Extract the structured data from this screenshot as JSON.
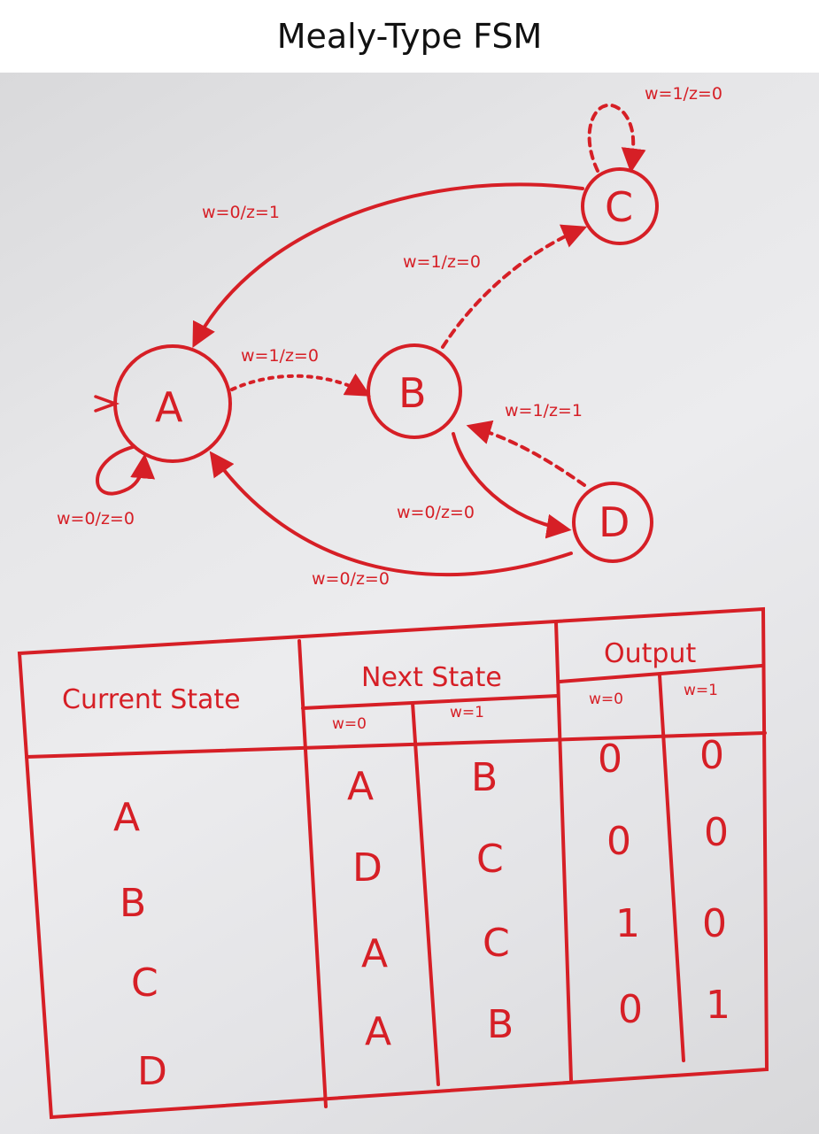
{
  "title": "Mealy-Type FSM",
  "colors": {
    "ink": "#d61f26",
    "board": "#e6e6e8"
  },
  "states": [
    "A",
    "B",
    "C",
    "D"
  ],
  "transitions": {
    "A_self": "w=0/z=0",
    "A_to_B": "w=1/z=0",
    "B_to_C": "w=1/z=0",
    "C_self": "w=1/z=0",
    "C_to_A": "w=0/z=1",
    "D_to_B": "w=1/z=1",
    "B_to_D": "w=0/z=0",
    "D_to_A": "w=0/z=0"
  },
  "table": {
    "headers": {
      "current_state": "Current State",
      "next_state": "Next State",
      "output": "Output",
      "w0": "w=0",
      "w1": "w=1"
    },
    "rows": [
      {
        "current": "A",
        "next_w0": "A",
        "next_w1": "B",
        "out_w0": "0",
        "out_w1": "0"
      },
      {
        "current": "B",
        "next_w0": "D",
        "next_w1": "C",
        "out_w0": "0",
        "out_w1": "0"
      },
      {
        "current": "C",
        "next_w0": "A",
        "next_w1": "C",
        "out_w0": "1",
        "out_w1": "0"
      },
      {
        "current": "D",
        "next_w0": "A",
        "next_w1": "B",
        "out_w0": "0",
        "out_w1": "1"
      }
    ]
  }
}
